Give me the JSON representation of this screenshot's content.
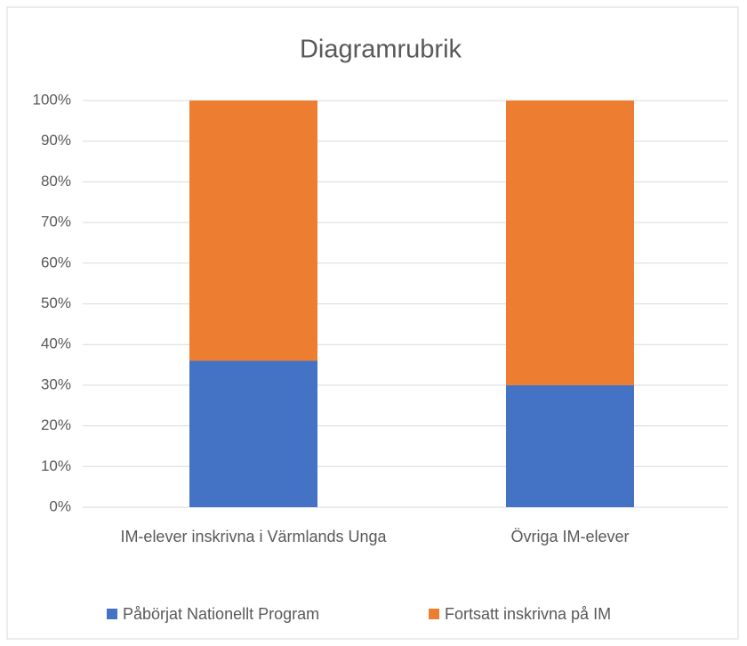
{
  "chart_data": {
    "type": "stacked_bar",
    "title": "Diagramrubrik",
    "categories": [
      "IM-elever inskrivna i Värmlands Unga",
      "Övriga IM-elever"
    ],
    "series": [
      {
        "name": "Påbörjat Nationellt Program",
        "color": "#4472c4",
        "values": [
          36,
          30
        ]
      },
      {
        "name": "Fortsatt inskrivna på IM",
        "color": "#ed7d31",
        "values": [
          64,
          70
        ]
      }
    ],
    "ylim": [
      0,
      100
    ],
    "yticks": [
      {
        "value": 0,
        "label": "0%"
      },
      {
        "value": 10,
        "label": "10%"
      },
      {
        "value": 20,
        "label": "20%"
      },
      {
        "value": 30,
        "label": "30%"
      },
      {
        "value": 40,
        "label": "40%"
      },
      {
        "value": 50,
        "label": "50%"
      },
      {
        "value": 60,
        "label": "60%"
      },
      {
        "value": 70,
        "label": "70%"
      },
      {
        "value": 80,
        "label": "80%"
      },
      {
        "value": 90,
        "label": "90%"
      },
      {
        "value": 100,
        "label": "100%"
      }
    ],
    "grid": true,
    "legend": "bottom"
  }
}
